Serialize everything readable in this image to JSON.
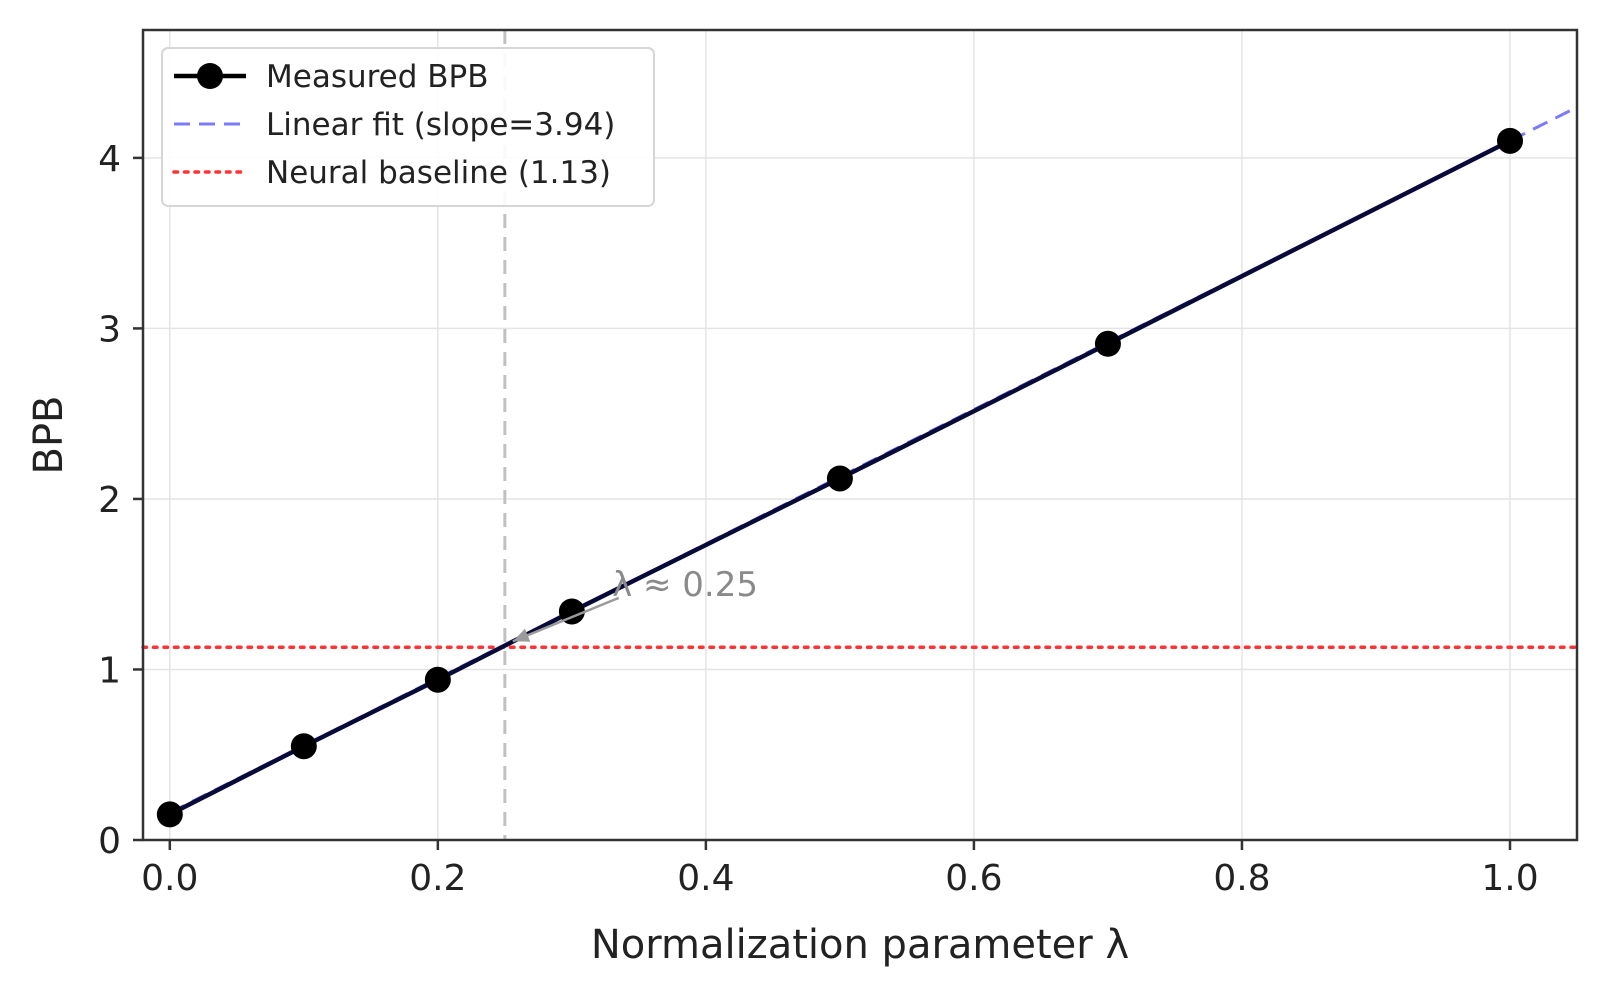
{
  "chart_data": {
    "type": "line",
    "xlabel": "Normalization parameter λ",
    "ylabel": "BPB",
    "xlim": [
      -0.02,
      1.05
    ],
    "ylim": [
      0,
      4.75
    ],
    "xticks": [
      0.0,
      0.2,
      0.4,
      0.6,
      0.8,
      1.0
    ],
    "xtick_labels": [
      "0.0",
      "0.2",
      "0.4",
      "0.6",
      "0.8",
      "1.0"
    ],
    "yticks": [
      0,
      1,
      2,
      3,
      4
    ],
    "ytick_labels": [
      "0",
      "1",
      "2",
      "3",
      "4"
    ],
    "grid": true,
    "legend_position": "top-left",
    "series": [
      {
        "name": "Measured BPB",
        "style": "solid-with-markers",
        "color": "#000000",
        "x": [
          0.0,
          0.1,
          0.2,
          0.3,
          0.5,
          0.7,
          1.0
        ],
        "y": [
          0.15,
          0.55,
          0.94,
          1.34,
          2.12,
          2.91,
          4.1
        ]
      },
      {
        "name": "Linear fit (slope=3.94)",
        "style": "dashed",
        "color": "#7b7bff",
        "slope": 3.94,
        "x": [
          0.0,
          1.05
        ],
        "y": [
          0.16,
          4.297
        ]
      },
      {
        "name": "Neural baseline (1.13)",
        "style": "dotted",
        "color": "#ff3333",
        "y_value": 1.13
      }
    ],
    "reference_vline": {
      "x": 0.25,
      "color": "#c0c0c0",
      "style": "dashed"
    },
    "annotation": {
      "text": "λ ≈ 0.25",
      "text_at": [
        0.33,
        1.5
      ],
      "arrow_to": [
        0.25,
        1.13
      ]
    }
  }
}
